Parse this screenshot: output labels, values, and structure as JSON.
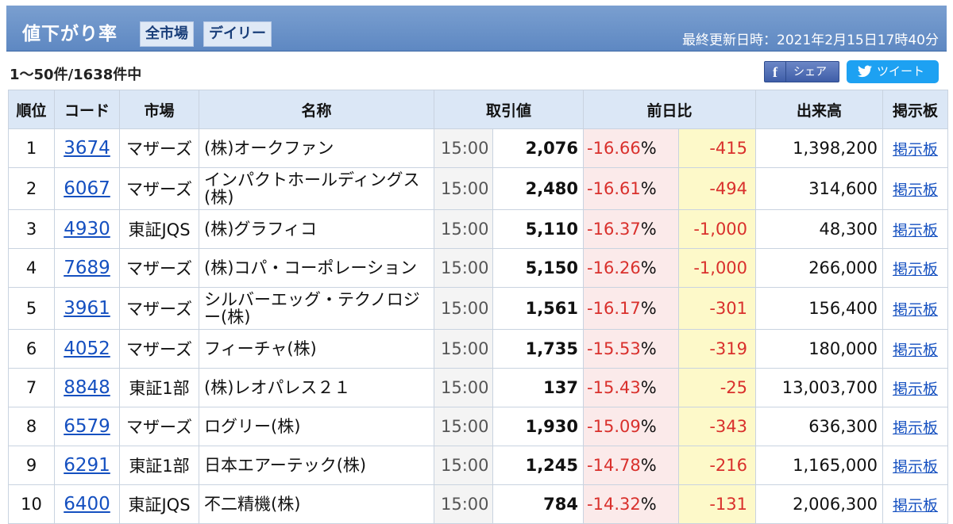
{
  "header": {
    "title": "値下がり率",
    "tag_market": "全市場",
    "tag_period": "デイリー",
    "updated": "最終更新日時：2021年2月15日17時40分"
  },
  "summary": {
    "count": "1〜50件/1638件中"
  },
  "share": {
    "facebook_icon": "f",
    "facebook_label": "シェア",
    "tweet_label": "ツイート"
  },
  "columns": {
    "rank": "順位",
    "code": "コード",
    "market": "市場",
    "name": "名称",
    "price": "取引値",
    "change": "前日比",
    "volume": "出来高",
    "board": "掲示板"
  },
  "rows": [
    {
      "rank": "1",
      "code": "3674",
      "market": "マザーズ",
      "name": "(株)オークファン",
      "time": "15:00",
      "price": "2,076",
      "pct": "-16.66",
      "chg": "-415",
      "vol": "1,398,200",
      "board": "掲示板"
    },
    {
      "rank": "2",
      "code": "6067",
      "market": "マザーズ",
      "name": "インパクトホールディングス(株)",
      "time": "15:00",
      "price": "2,480",
      "pct": "-16.61",
      "chg": "-494",
      "vol": "314,600",
      "board": "掲示板"
    },
    {
      "rank": "3",
      "code": "4930",
      "market": "東証JQS",
      "name": "(株)グラフィコ",
      "time": "15:00",
      "price": "5,110",
      "pct": "-16.37",
      "chg": "-1,000",
      "vol": "48,300",
      "board": "掲示板"
    },
    {
      "rank": "4",
      "code": "7689",
      "market": "マザーズ",
      "name": "(株)コパ・コーポレーション",
      "time": "15:00",
      "price": "5,150",
      "pct": "-16.26",
      "chg": "-1,000",
      "vol": "266,000",
      "board": "掲示板"
    },
    {
      "rank": "5",
      "code": "3961",
      "market": "マザーズ",
      "name": "シルバーエッグ・テクノロジー(株)",
      "time": "15:00",
      "price": "1,561",
      "pct": "-16.17",
      "chg": "-301",
      "vol": "156,400",
      "board": "掲示板"
    },
    {
      "rank": "6",
      "code": "4052",
      "market": "マザーズ",
      "name": "フィーチャ(株)",
      "time": "15:00",
      "price": "1,735",
      "pct": "-15.53",
      "chg": "-319",
      "vol": "180,000",
      "board": "掲示板"
    },
    {
      "rank": "7",
      "code": "8848",
      "market": "東証1部",
      "name": "(株)レオパレス２１",
      "time": "15:00",
      "price": "137",
      "pct": "-15.43",
      "chg": "-25",
      "vol": "13,003,700",
      "board": "掲示板"
    },
    {
      "rank": "8",
      "code": "6579",
      "market": "マザーズ",
      "name": "ログリー(株)",
      "time": "15:00",
      "price": "1,930",
      "pct": "-15.09",
      "chg": "-343",
      "vol": "636,300",
      "board": "掲示板"
    },
    {
      "rank": "9",
      "code": "6291",
      "market": "東証1部",
      "name": "日本エアーテック(株)",
      "time": "15:00",
      "price": "1,245",
      "pct": "-14.78",
      "chg": "-216",
      "vol": "1,165,000",
      "board": "掲示板"
    },
    {
      "rank": "10",
      "code": "6400",
      "market": "東証JQS",
      "name": "不二精機(株)",
      "time": "15:00",
      "price": "784",
      "pct": "-14.32",
      "chg": "-131",
      "vol": "2,006,300",
      "board": "掲示板"
    }
  ],
  "percent_symbol": "%"
}
